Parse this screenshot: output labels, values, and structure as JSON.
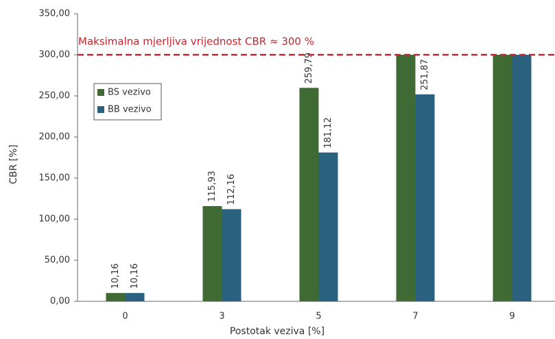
{
  "chart_data": {
    "type": "bar",
    "xlabel": "Postotak veziva [%]",
    "ylabel": "CBR [%]",
    "categories": [
      "0",
      "3",
      "5",
      "7",
      "9"
    ],
    "series": [
      {
        "name": "BS vezivo",
        "color": "#3f6a33",
        "values": [
          10.16,
          115.93,
          259.79,
          300,
          300
        ],
        "value_labels": [
          "10,16",
          "115,93",
          "259,79",
          null,
          null
        ]
      },
      {
        "name": "BB vezivo",
        "color": "#2a617f",
        "values": [
          10.16,
          112.16,
          181.12,
          251.87,
          300
        ],
        "value_labels": [
          "10,16",
          "112,16",
          "181,12",
          "251,87",
          null
        ]
      }
    ],
    "ylim": [
      0,
      350
    ],
    "yticks": [
      {
        "value": 0,
        "label": "0,00"
      },
      {
        "value": 50,
        "label": "50,00"
      },
      {
        "value": 100,
        "label": "100,00"
      },
      {
        "value": 150,
        "label": "150,00"
      },
      {
        "value": 200,
        "label": "200,00"
      },
      {
        "value": 250,
        "label": "250,00"
      },
      {
        "value": 300,
        "label": "300,00"
      },
      {
        "value": 350,
        "label": "350,00"
      }
    ],
    "annotation": {
      "text": "Maksimalna mjerljiva vrijednost CBR ≈ 300 %",
      "value": 300,
      "color": "#c0262d"
    },
    "legend": "upper left"
  }
}
